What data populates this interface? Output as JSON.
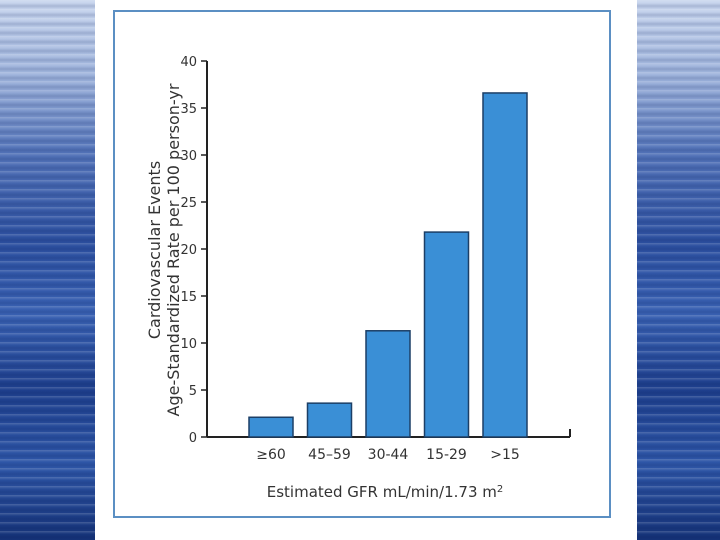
{
  "chart_data": {
    "type": "bar",
    "categories": [
      "≥60",
      "45–59",
      "30-44",
      "15-29",
      ">15"
    ],
    "values": [
      2.1,
      3.6,
      11.3,
      21.8,
      36.6
    ],
    "ylabel_lines": [
      "Cardiovascular Events",
      "Age-Standardized Rate per 100 person-yr"
    ],
    "xlabel": "Estimated GFR mL/min/1.73 m",
    "xlabel_sup": "2",
    "ylim": [
      0,
      40
    ],
    "yticks": [
      "0",
      "5",
      "10",
      "15",
      "20",
      "25",
      "30",
      "35",
      "40"
    ],
    "bar_color": "#3a8fd6",
    "bar_edge": "#1c3f66"
  }
}
